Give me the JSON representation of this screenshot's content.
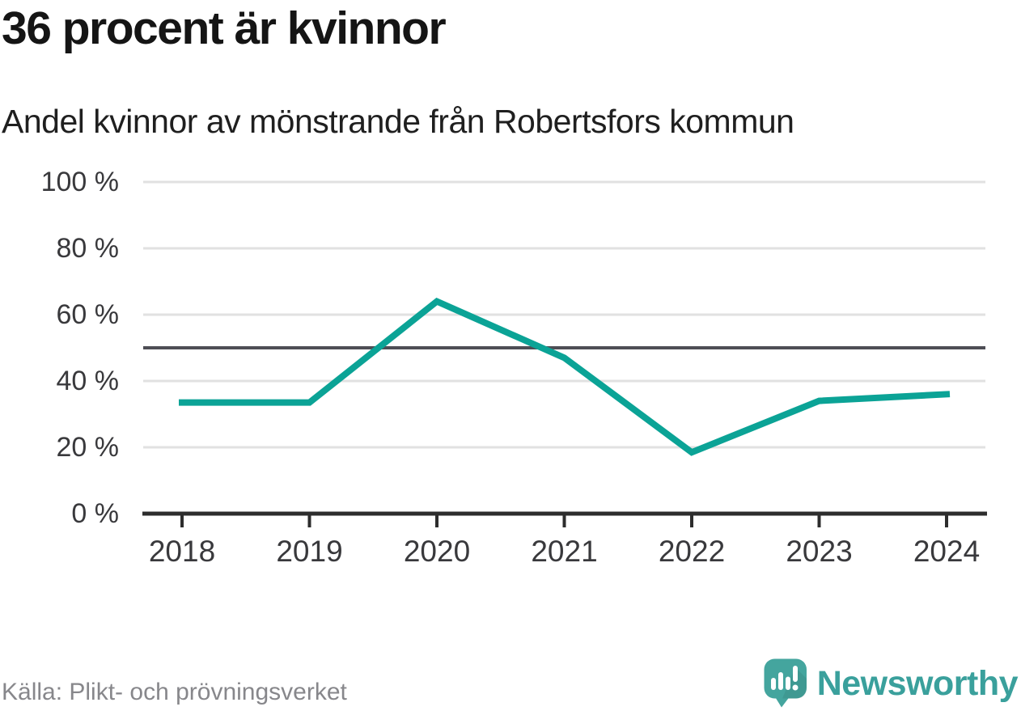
{
  "header": {
    "title": "36 procent är kvinnor",
    "subtitle": "Andel kvinnor av mönstrande från Robertsfors kommun"
  },
  "footer": {
    "source": "Källa: Plikt- och prövningsverket",
    "brand": "Newsworthy",
    "brand_icon": "newsworthy-speech-bubble-bar-chart-exclamation-icon"
  },
  "colors": {
    "accent_teal": "#0ba396",
    "reference_line": "#4e4e55",
    "gridline": "#e1e1e1",
    "axis": "#2d2d2d",
    "tick_label": "#39393c",
    "title_text": "#151515",
    "subtitle_text": "#1f1f1f",
    "source_text": "#87878b",
    "brand_teal": "#3aa09c",
    "icon_teal": "#44a59e",
    "icon_mark_white": "#ffffff",
    "background": "#ffffff"
  },
  "chart_data": {
    "type": "line",
    "title": "36 procent är kvinnor",
    "subtitle": "Andel kvinnor av mönstrande från Robertsfors kommun",
    "categories": [
      "2018",
      "2019",
      "2020",
      "2021",
      "2022",
      "2023",
      "2024"
    ],
    "series": [
      {
        "name": "Andel kvinnor av mönstrande",
        "values": [
          33.5,
          33.5,
          64,
          47,
          18.5,
          34,
          36
        ]
      }
    ],
    "xlabel": "",
    "ylabel": "",
    "ylim": [
      0,
      100
    ],
    "y_tick_values": [
      0,
      20,
      40,
      60,
      80,
      100
    ],
    "y_tick_format": "{v} %",
    "reference_line": {
      "value": 50,
      "color": "#4e4e55"
    },
    "grid": "horizontal",
    "legend": "none",
    "line_color": "#0ba396",
    "line_width": 8
  }
}
